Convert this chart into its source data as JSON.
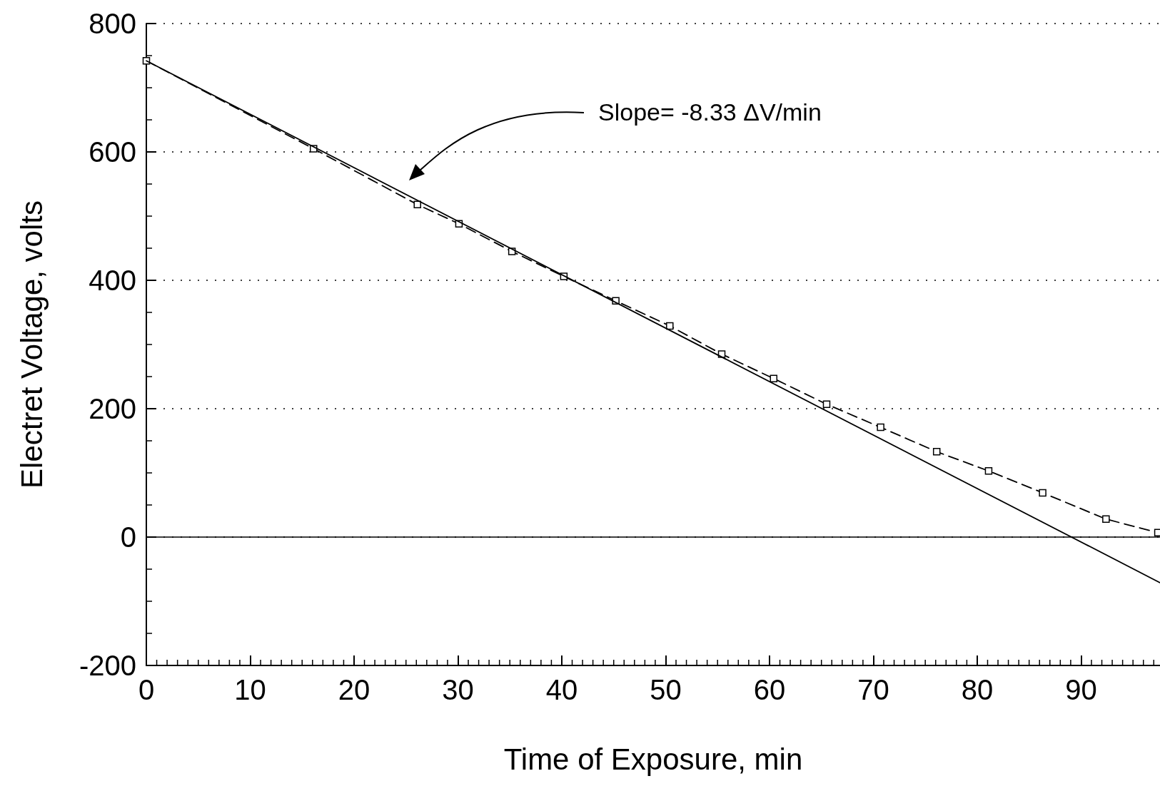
{
  "chart_data": {
    "type": "line",
    "xlabel": "Time of Exposure, min",
    "ylabel": "Electret Voltage, volts",
    "annotations": [
      "Slope= -8.33 ΔV/min"
    ],
    "xlim": [
      0,
      97.6
    ],
    "xticks": [
      0,
      10,
      20,
      30,
      40,
      50,
      60,
      70,
      80,
      90
    ],
    "ylim": [
      -200,
      800
    ],
    "yticks": [
      -200,
      0,
      200,
      400,
      600,
      800
    ],
    "grid": "y",
    "ref_lines": [
      {
        "axis": "y",
        "value": 0,
        "color": "#000000",
        "line_style": "solid"
      }
    ],
    "series": [
      {
        "color": "#000000",
        "marker": "square",
        "line_style": "dashed",
        "x": [
          0,
          16.1,
          26.1,
          30.1,
          35.2,
          40.2,
          45.2,
          50.4,
          55.4,
          60.4,
          65.5,
          70.7,
          76.1,
          81.1,
          86.3,
          92.4,
          97.4
        ],
        "values": [
          742,
          605,
          518,
          488,
          445,
          406,
          368,
          329,
          285,
          247,
          207,
          171,
          133,
          103,
          69,
          28,
          7
        ]
      },
      {
        "color": "#000000",
        "marker": "none",
        "line_style": "solid",
        "x": [
          0,
          97.6
        ],
        "values": [
          742,
          -71
        ]
      }
    ]
  }
}
